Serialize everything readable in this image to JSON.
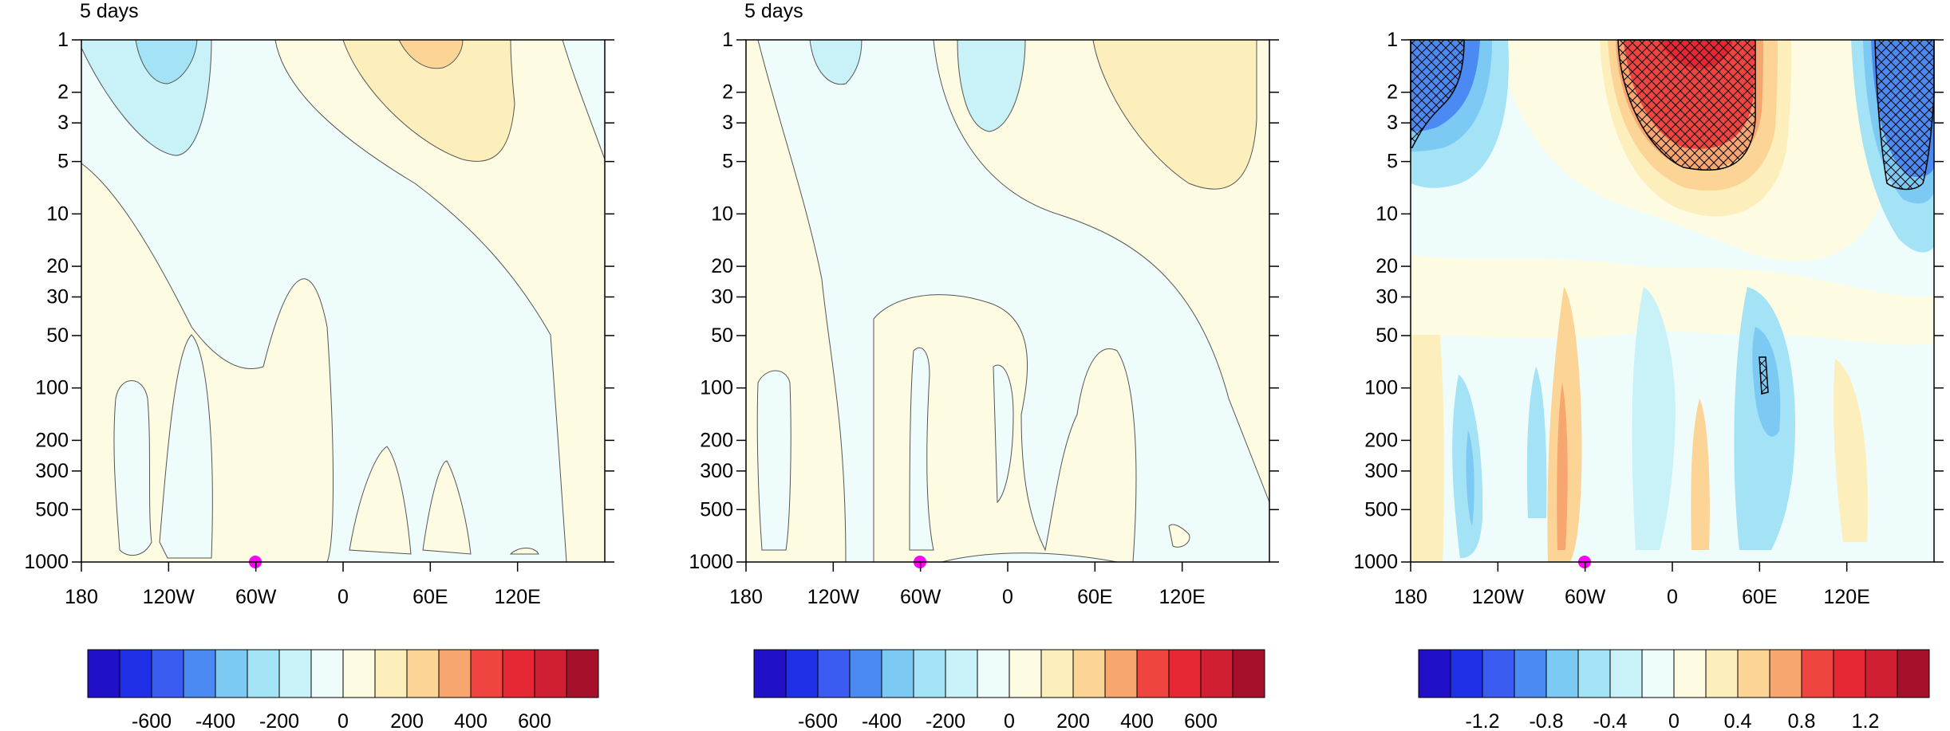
{
  "chart_data": [
    {
      "type": "contour",
      "title": "5 days",
      "x_ticks": [
        "180",
        "120W",
        "60W",
        "0",
        "60E",
        "120E"
      ],
      "x_values": [
        -180,
        -120,
        -60,
        0,
        60,
        120
      ],
      "xlim": [
        -180,
        180
      ],
      "y_ticks": [
        "1",
        "2",
        "3",
        "5",
        "10",
        "20",
        "30",
        "50",
        "100",
        "200",
        "300",
        "500",
        "1000"
      ],
      "y_values": [
        1,
        2,
        3,
        5,
        10,
        20,
        30,
        50,
        100,
        200,
        300,
        500,
        1000
      ],
      "ylim": [
        1,
        1000
      ],
      "y_scale": "log",
      "y_inverted": true,
      "colorbar": {
        "levels": [
          -700,
          -600,
          -500,
          -400,
          -300,
          -200,
          -100,
          0,
          100,
          200,
          300,
          400,
          500,
          600,
          700
        ],
        "tick_labels": [
          "-600",
          "-400",
          "-200",
          "0",
          "200",
          "400",
          "600"
        ],
        "tick_values": [
          -600,
          -400,
          -200,
          0,
          200,
          400,
          600
        ]
      },
      "marker": {
        "lon": -60,
        "level": 1000,
        "color": "#ff00ff"
      }
    },
    {
      "type": "contour",
      "title": "5 days",
      "x_ticks": [
        "180",
        "120W",
        "60W",
        "0",
        "60E",
        "120E"
      ],
      "x_values": [
        -180,
        -120,
        -60,
        0,
        60,
        120
      ],
      "xlim": [
        -180,
        180
      ],
      "y_ticks": [
        "1",
        "2",
        "3",
        "5",
        "10",
        "20",
        "30",
        "50",
        "100",
        "200",
        "300",
        "500",
        "1000"
      ],
      "y_values": [
        1,
        2,
        3,
        5,
        10,
        20,
        30,
        50,
        100,
        200,
        300,
        500,
        1000
      ],
      "ylim": [
        1,
        1000
      ],
      "y_scale": "log",
      "y_inverted": true,
      "colorbar": {
        "levels": [
          -700,
          -600,
          -500,
          -400,
          -300,
          -200,
          -100,
          0,
          100,
          200,
          300,
          400,
          500,
          600,
          700
        ],
        "tick_labels": [
          "-600",
          "-400",
          "-200",
          "0",
          "200",
          "400",
          "600"
        ],
        "tick_values": [
          -600,
          -400,
          -200,
          0,
          200,
          400,
          600
        ]
      },
      "marker": {
        "lon": -60,
        "level": 1000,
        "color": "#ff00ff"
      }
    },
    {
      "type": "contour",
      "title": "",
      "x_ticks": [
        "180",
        "120W",
        "60W",
        "0",
        "60E",
        "120E"
      ],
      "x_values": [
        -180,
        -120,
        -60,
        0,
        60,
        120
      ],
      "xlim": [
        -180,
        180
      ],
      "y_ticks": [
        "1",
        "2",
        "3",
        "5",
        "10",
        "20",
        "30",
        "50",
        "100",
        "200",
        "300",
        "500",
        "1000"
      ],
      "y_values": [
        1,
        2,
        3,
        5,
        10,
        20,
        30,
        50,
        100,
        200,
        300,
        500,
        1000
      ],
      "ylim": [
        1,
        1000
      ],
      "y_scale": "log",
      "y_inverted": true,
      "hatched_regions": "significance",
      "colorbar": {
        "levels": [
          -1.4,
          -1.2,
          -1.0,
          -0.8,
          -0.6,
          -0.4,
          -0.2,
          0,
          0.2,
          0.4,
          0.6,
          0.8,
          1.0,
          1.2,
          1.4
        ],
        "tick_labels": [
          "-1.2",
          "-0.8",
          "-0.4",
          "0",
          "0.4",
          "0.8",
          "1.2"
        ],
        "tick_values": [
          -1.2,
          -0.8,
          -0.4,
          0,
          0.4,
          0.8,
          1.2
        ]
      },
      "marker": {
        "lon": -60,
        "level": 1000,
        "color": "#ff00ff"
      }
    }
  ],
  "colors": {
    "palette": [
      "#2010c8",
      "#2030e6",
      "#3a5cf0",
      "#4a8af2",
      "#7ccaf4",
      "#a4e2f6",
      "#c8f2f8",
      "#eefcfc",
      "#fdfbe2",
      "#fdefbc",
      "#fbd496",
      "#f7a670",
      "#f04440",
      "#e62834",
      "#d01e32",
      "#a6102a"
    ],
    "marker": "#ff00ff"
  }
}
